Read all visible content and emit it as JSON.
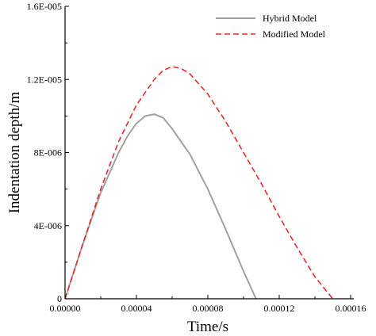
{
  "chart_data": {
    "type": "line",
    "xlabel": "Time/s",
    "ylabel": "Indentation depth/m",
    "xlim": [
      0,
      0.00016
    ],
    "ylim": [
      0,
      1.6e-05
    ],
    "x_ticks": [
      "0.00000",
      "0.00004",
      "0.00008",
      "0.00012",
      "0.00016"
    ],
    "y_ticks": [
      "0",
      "4E-006",
      "8E-006",
      "1.2E-005",
      "1.6E-005"
    ],
    "grid": false,
    "legend": "top-right",
    "series": [
      {
        "name": "Hybrid Model",
        "color": "#a0a0a0",
        "dash": "solid",
        "x": [
          0,
          1e-05,
          2e-05,
          3e-05,
          3.5e-05,
          4e-05,
          4.5e-05,
          5e-05,
          5.5e-05,
          6e-05,
          7e-05,
          8e-05,
          9e-05,
          0.0001,
          0.000107
        ],
        "y": [
          0,
          3e-06,
          5.8e-06,
          8e-06,
          8.9e-06,
          9.6e-06,
          1e-05,
          1.01e-05,
          9.9e-06,
          9.3e-06,
          7.9e-06,
          6e-06,
          3.8e-06,
          1.5e-06,
          0
        ]
      },
      {
        "name": "Modified Model",
        "color": "#e8292a",
        "dash": "dashed",
        "x": [
          0,
          1e-05,
          2e-05,
          3e-05,
          4e-05,
          5e-05,
          5.5e-05,
          6e-05,
          6.5e-05,
          7e-05,
          8e-05,
          9e-05,
          0.0001,
          0.00011,
          0.00012,
          0.00013,
          0.00014,
          0.00015
        ],
        "y": [
          0,
          3e-06,
          6e-06,
          8.6e-06,
          1.06e-05,
          1.2e-05,
          1.25e-05,
          1.27e-05,
          1.26e-05,
          1.23e-05,
          1.12e-05,
          9.7e-06,
          8e-06,
          6.3e-06,
          4.5e-06,
          2.8e-06,
          1.2e-06,
          0
        ]
      }
    ]
  }
}
